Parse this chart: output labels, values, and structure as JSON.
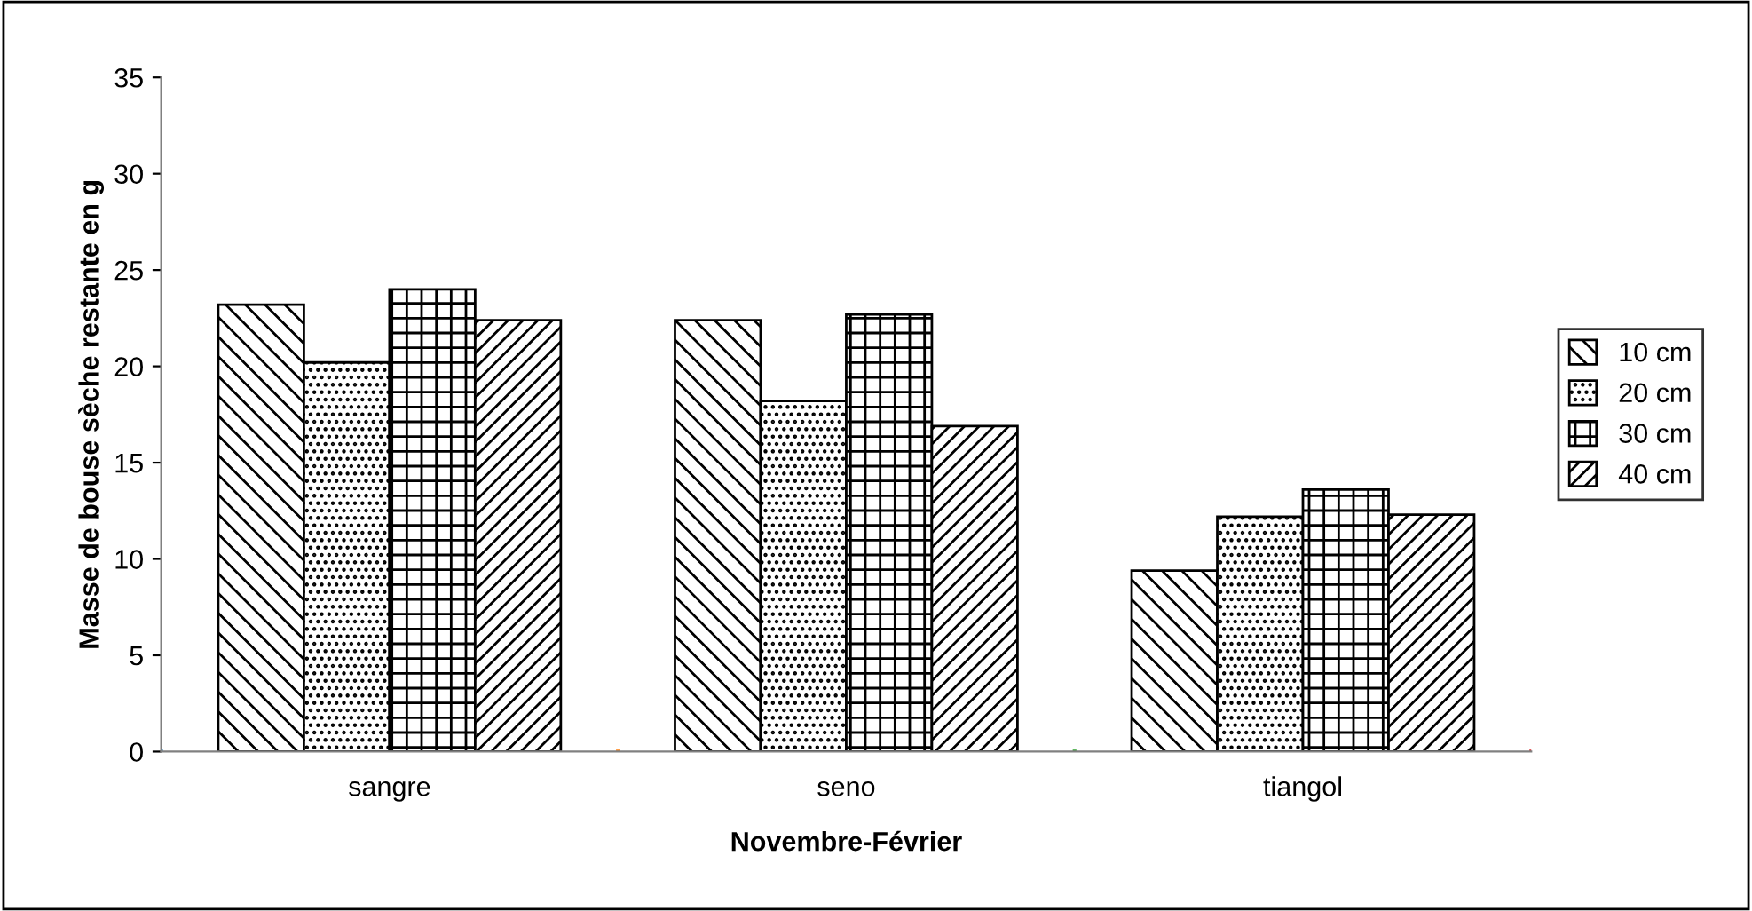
{
  "chart_data": {
    "type": "bar",
    "xlabel": "Novembre-Février",
    "ylabel": "Masse de bouse sèche restante en g",
    "categories": [
      "sangre",
      "seno",
      "tiangol"
    ],
    "series": [
      {
        "name": "10 cm",
        "color": "#000000",
        "values": [
          23.2,
          22.4,
          9.4
        ]
      },
      {
        "name": "20 cm",
        "color": "#000000",
        "values": [
          20.2,
          18.2,
          12.2
        ]
      },
      {
        "name": "30 cm",
        "color": "#000000",
        "values": [
          24.0,
          22.7,
          13.6
        ]
      },
      {
        "name": "40 cm",
        "color": "#000000",
        "values": [
          22.4,
          16.9,
          12.3
        ]
      }
    ],
    "ylim": [
      0,
      35
    ],
    "yticks": [
      0,
      5,
      10,
      15,
      20,
      25,
      30,
      35
    ],
    "grid": false,
    "legend": "right"
  }
}
